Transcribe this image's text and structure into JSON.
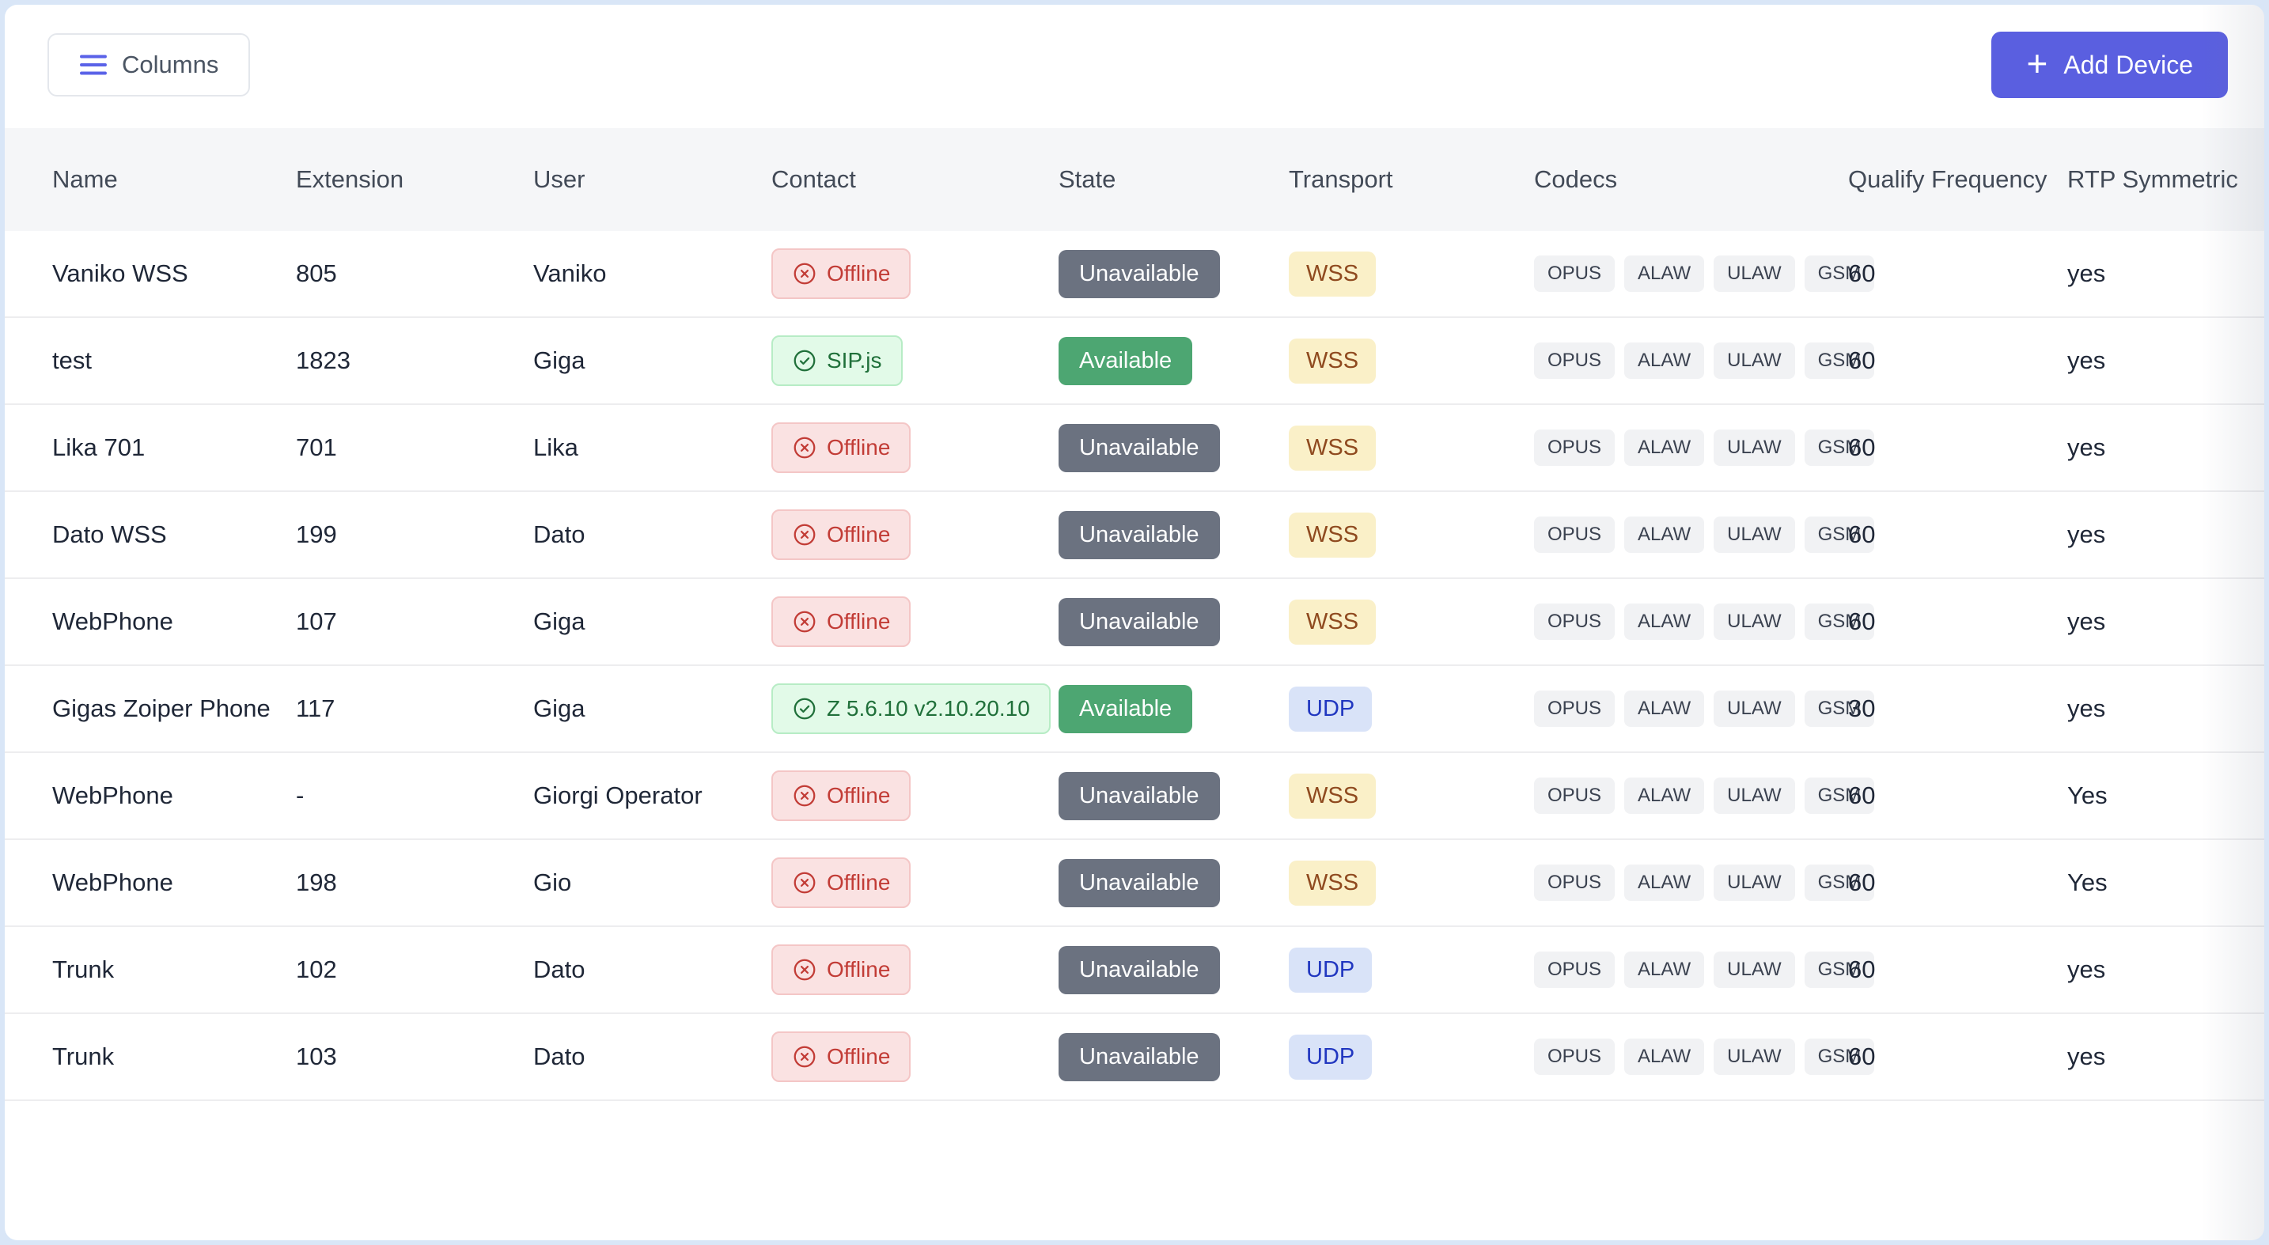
{
  "toolbar": {
    "columns_label": "Columns",
    "add_device_label": "Add Device",
    "add_icon": "+",
    "accent_color": "#5a5fe0"
  },
  "table": {
    "headers": {
      "name": "Name",
      "extension": "Extension",
      "user": "User",
      "contact": "Contact",
      "state": "State",
      "transport": "Transport",
      "codecs": "Codecs",
      "qualify_frequency": "Qualify Frequency",
      "rtp_symmetric": "RTP Symmetric"
    },
    "rows": [
      {
        "name": "Vaniko WSS",
        "extension": "805",
        "user": "Vaniko",
        "contact": {
          "label": "Offline",
          "status": "offline"
        },
        "state": {
          "label": "Unavailable",
          "variant": "unavailable"
        },
        "transport": {
          "label": "WSS",
          "variant": "wss"
        },
        "codecs": [
          "OPUS",
          "ALAW",
          "ULAW",
          "GSM"
        ],
        "qualify_frequency": "60",
        "rtp_symmetric": "yes"
      },
      {
        "name": "test",
        "extension": "1823",
        "user": "Giga",
        "contact": {
          "label": "SIP.js",
          "status": "online"
        },
        "state": {
          "label": "Available",
          "variant": "available"
        },
        "transport": {
          "label": "WSS",
          "variant": "wss"
        },
        "codecs": [
          "OPUS",
          "ALAW",
          "ULAW",
          "GSM"
        ],
        "qualify_frequency": "60",
        "rtp_symmetric": "yes"
      },
      {
        "name": "Lika 701",
        "extension": "701",
        "user": "Lika",
        "contact": {
          "label": "Offline",
          "status": "offline"
        },
        "state": {
          "label": "Unavailable",
          "variant": "unavailable"
        },
        "transport": {
          "label": "WSS",
          "variant": "wss"
        },
        "codecs": [
          "OPUS",
          "ALAW",
          "ULAW",
          "GSM"
        ],
        "qualify_frequency": "60",
        "rtp_symmetric": "yes"
      },
      {
        "name": "Dato WSS",
        "extension": "199",
        "user": "Dato",
        "contact": {
          "label": "Offline",
          "status": "offline"
        },
        "state": {
          "label": "Unavailable",
          "variant": "unavailable"
        },
        "transport": {
          "label": "WSS",
          "variant": "wss"
        },
        "codecs": [
          "OPUS",
          "ALAW",
          "ULAW",
          "GSM"
        ],
        "qualify_frequency": "60",
        "rtp_symmetric": "yes"
      },
      {
        "name": "WebPhone",
        "extension": "107",
        "user": "Giga",
        "contact": {
          "label": "Offline",
          "status": "offline"
        },
        "state": {
          "label": "Unavailable",
          "variant": "unavailable"
        },
        "transport": {
          "label": "WSS",
          "variant": "wss"
        },
        "codecs": [
          "OPUS",
          "ALAW",
          "ULAW",
          "GSM"
        ],
        "qualify_frequency": "60",
        "rtp_symmetric": "yes"
      },
      {
        "name": "Gigas Zoiper Phone",
        "extension": "117",
        "user": "Giga",
        "contact": {
          "label": "Z 5.6.10 v2.10.20.10",
          "status": "online"
        },
        "state": {
          "label": "Available",
          "variant": "available"
        },
        "transport": {
          "label": "UDP",
          "variant": "udp"
        },
        "codecs": [
          "OPUS",
          "ALAW",
          "ULAW",
          "GSM"
        ],
        "qualify_frequency": "30",
        "rtp_symmetric": "yes"
      },
      {
        "name": "WebPhone",
        "extension": "-",
        "user": "Giorgi Operator",
        "contact": {
          "label": "Offline",
          "status": "offline"
        },
        "state": {
          "label": "Unavailable",
          "variant": "unavailable"
        },
        "transport": {
          "label": "WSS",
          "variant": "wss"
        },
        "codecs": [
          "OPUS",
          "ALAW",
          "ULAW",
          "GSM"
        ],
        "qualify_frequency": "60",
        "rtp_symmetric": "Yes"
      },
      {
        "name": "WebPhone",
        "extension": "198",
        "user": "Gio",
        "contact": {
          "label": "Offline",
          "status": "offline"
        },
        "state": {
          "label": "Unavailable",
          "variant": "unavailable"
        },
        "transport": {
          "label": "WSS",
          "variant": "wss"
        },
        "codecs": [
          "OPUS",
          "ALAW",
          "ULAW",
          "GSM"
        ],
        "qualify_frequency": "60",
        "rtp_symmetric": "Yes"
      },
      {
        "name": "Trunk",
        "extension": "102",
        "user": "Dato",
        "contact": {
          "label": "Offline",
          "status": "offline"
        },
        "state": {
          "label": "Unavailable",
          "variant": "unavailable"
        },
        "transport": {
          "label": "UDP",
          "variant": "udp"
        },
        "codecs": [
          "OPUS",
          "ALAW",
          "ULAW",
          "GSM"
        ],
        "qualify_frequency": "60",
        "rtp_symmetric": "yes"
      },
      {
        "name": "Trunk",
        "extension": "103",
        "user": "Dato",
        "contact": {
          "label": "Offline",
          "status": "offline"
        },
        "state": {
          "label": "Unavailable",
          "variant": "unavailable"
        },
        "transport": {
          "label": "UDP",
          "variant": "udp"
        },
        "codecs": [
          "OPUS",
          "ALAW",
          "ULAW",
          "GSM"
        ],
        "qualify_frequency": "60",
        "rtp_symmetric": "yes"
      }
    ]
  },
  "colors": {
    "page_background": "#d9e6f7",
    "card_background": "#ffffff",
    "header_background": "#f5f6f8",
    "offline_text": "#c23c36",
    "online_text": "#20703a",
    "unavailable_bg": "#6b7280",
    "available_bg": "#4da672",
    "wss_bg": "#faf0c8",
    "wss_text": "#8f4a1f",
    "udp_bg": "#d9e3f8",
    "udp_text": "#2137c0"
  }
}
